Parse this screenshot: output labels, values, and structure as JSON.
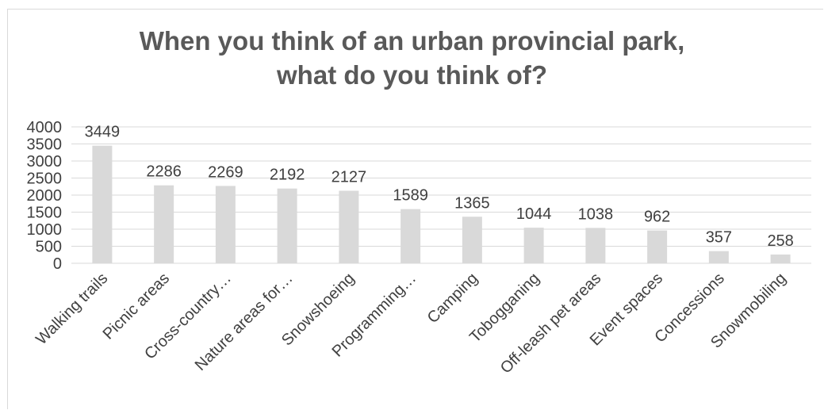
{
  "chart_data": {
    "type": "bar",
    "title_line1": "When you think of an urban provincial park,",
    "title_line2": "what do you think of?",
    "categories": [
      "Walking trails",
      "Picnic areas",
      "Cross-country…",
      "Nature areas for…",
      "Snowshoeing",
      "Programming…",
      "Camping",
      "Tobogganing",
      "Off-leash pet areas",
      "Event spaces",
      "Concessions",
      "Snowmobiling"
    ],
    "values": [
      3449,
      2286,
      2269,
      2192,
      2127,
      1589,
      1365,
      1044,
      1038,
      962,
      357,
      258
    ],
    "ylim": [
      0,
      4000
    ],
    "yticks": [
      0,
      500,
      1000,
      1500,
      2000,
      2500,
      3000,
      3500,
      4000
    ],
    "grid": true,
    "bar_color": "#d9d9d9",
    "grid_color": "#d9d9d9",
    "text_color": "#404040",
    "title_color": "#595959"
  }
}
